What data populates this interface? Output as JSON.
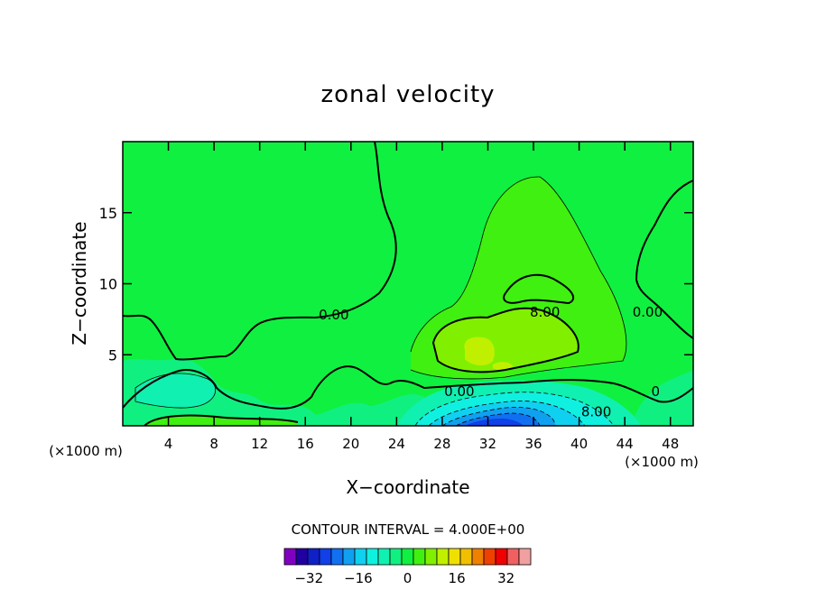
{
  "chart_data": {
    "type": "contour",
    "title": "zonal velocity",
    "xlabel": "X−coordinate",
    "ylabel": "Z−coordinate",
    "x_unit_left": "(×1000 m)",
    "x_unit_right": "(×1000 m)",
    "xlim": [
      0,
      50
    ],
    "ylim": [
      0,
      20
    ],
    "x_ticks": [
      4,
      8,
      12,
      16,
      20,
      24,
      28,
      32,
      36,
      40,
      44,
      48
    ],
    "y_ticks": [
      5,
      10,
      15
    ],
    "contour_interval_text": "CONTOUR INTERVAL = 4.000E+00",
    "contour_labels": [
      {
        "text": "0.00",
        "x": 18.5,
        "y": 7.8
      },
      {
        "text": "0.00",
        "x": 29.5,
        "y": 2.4
      },
      {
        "text": "8.00",
        "x": 37.0,
        "y": 8.0
      },
      {
        "text": "8.00",
        "x": 41.5,
        "y": 1.0
      },
      {
        "text": "0.00",
        "x": 46.0,
        "y": 8.0
      },
      {
        "text": "0",
        "x": 46.7,
        "y": 2.4
      }
    ],
    "colorbar": {
      "levels": [
        -36,
        -32,
        -28,
        -24,
        -20,
        -16,
        -12,
        -8,
        -4,
        0,
        4,
        8,
        12,
        16,
        20,
        24,
        28,
        32,
        36
      ],
      "colors": [
        "#8000c0",
        "#2000a0",
        "#1020c8",
        "#1040e8",
        "#1070f0",
        "#10a0f0",
        "#10d0f0",
        "#10f0e0",
        "#10f0b0",
        "#10f080",
        "#10f040",
        "#40f010",
        "#80f000",
        "#c0f000",
        "#f0e000",
        "#f0c000",
        "#f08000",
        "#f04000",
        "#f00000",
        "#f06060",
        "#f0a0a0"
      ],
      "tick_labels": [
        "−32",
        "−16",
        "0",
        "16",
        "32"
      ],
      "tick_values": [
        -32,
        -16,
        0,
        16,
        32
      ]
    }
  }
}
